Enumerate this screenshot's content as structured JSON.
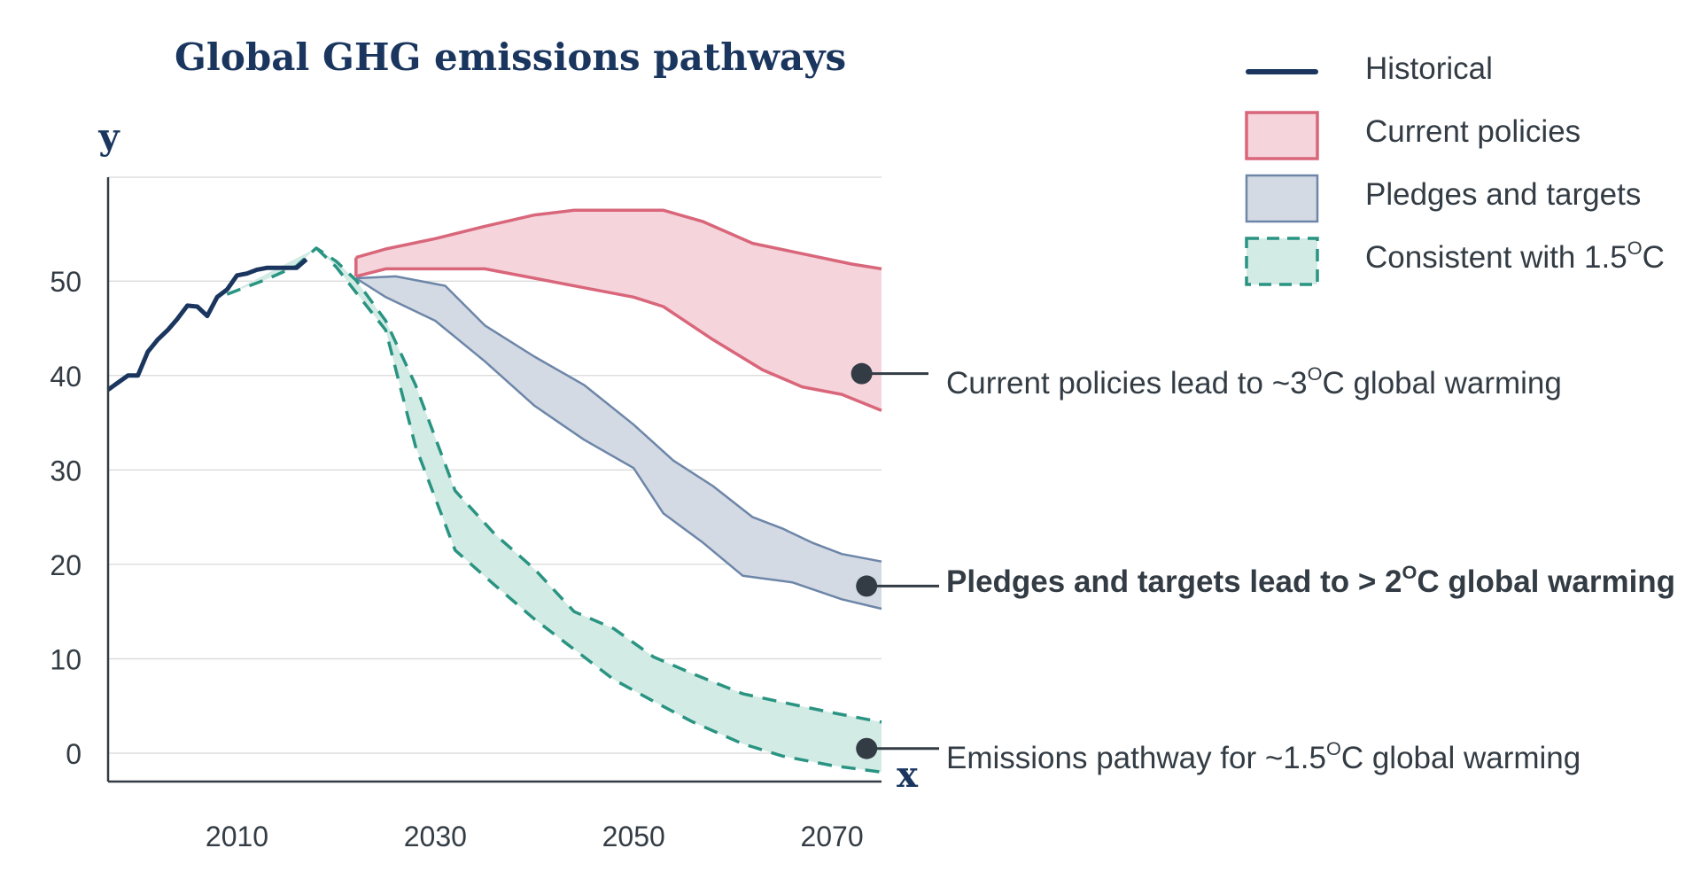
{
  "chart_data": {
    "type": "area",
    "title": "Global GHG emissions pathways",
    "xlabel": "x",
    "ylabel": "y",
    "xlim": [
      1997,
      2075
    ],
    "ylim": [
      -3,
      61
    ],
    "xticks": [
      2010,
      2030,
      2050,
      2070
    ],
    "yticks": [
      0,
      10,
      20,
      30,
      40,
      50
    ],
    "grid": true,
    "legend_position": "top-right",
    "legend": [
      "Historical",
      "Current policies",
      "Pledges and targets",
      "Consistent with 1.5"
    ],
    "colors": {
      "historical": "#1a365f",
      "current_policies_fill": "#f5d5db",
      "current_policies_stroke": "#d9667a",
      "pledges_fill": "#d3dae4",
      "pledges_stroke": "#6d86a8",
      "consistent_fill": "#d3ebe5",
      "consistent_stroke": "#2a9482",
      "grid": "#d8d8d8",
      "axis": "#333c44",
      "annotation_dot": "#333c44"
    },
    "series": [
      {
        "name": "Historical",
        "kind": "line",
        "points": [
          [
            1997,
            38.5
          ],
          [
            1999,
            40
          ],
          [
            2000,
            40
          ],
          [
            2001,
            42.5
          ],
          [
            2002,
            43.8
          ],
          [
            2003,
            44.8
          ],
          [
            2004,
            46
          ],
          [
            2005,
            47.4
          ],
          [
            2006,
            47.3
          ],
          [
            2007,
            46.3
          ],
          [
            2008,
            48.3
          ],
          [
            2009,
            49.1
          ],
          [
            2010,
            50.6
          ],
          [
            2011,
            50.8
          ],
          [
            2012,
            51.2
          ],
          [
            2013,
            51.4
          ],
          [
            2014,
            51.4
          ],
          [
            2015,
            51.4
          ],
          [
            2016,
            51.4
          ],
          [
            2017,
            52.3
          ]
        ]
      },
      {
        "name": "Current policies",
        "kind": "band",
        "upper": [
          [
            2022,
            52.5
          ],
          [
            2025,
            53.4
          ],
          [
            2030,
            54.5
          ],
          [
            2035,
            55.8
          ],
          [
            2040,
            57
          ],
          [
            2044,
            57.5
          ],
          [
            2048,
            57.5
          ],
          [
            2053,
            57.5
          ],
          [
            2057,
            56.3
          ],
          [
            2062,
            54
          ],
          [
            2067,
            52.9
          ],
          [
            2072,
            51.8
          ],
          [
            2075,
            51.3
          ]
        ],
        "lower": [
          [
            2022,
            50.5
          ],
          [
            2025,
            51.3
          ],
          [
            2030,
            51.3
          ],
          [
            2035,
            51.3
          ],
          [
            2040,
            50.3
          ],
          [
            2045,
            49.3
          ],
          [
            2050,
            48.3
          ],
          [
            2053,
            47.3
          ],
          [
            2058,
            43.8
          ],
          [
            2063,
            40.6
          ],
          [
            2067,
            38.8
          ],
          [
            2071,
            38
          ],
          [
            2075,
            36.3
          ]
        ]
      },
      {
        "name": "Pledges and targets",
        "kind": "band",
        "upper": [
          [
            2022,
            50.3
          ],
          [
            2026,
            50.5
          ],
          [
            2031,
            49.5
          ],
          [
            2035,
            45.3
          ],
          [
            2040,
            42
          ],
          [
            2045,
            39
          ],
          [
            2050,
            34.8
          ],
          [
            2054,
            31
          ],
          [
            2058,
            28.3
          ],
          [
            2062,
            25
          ],
          [
            2065,
            23.8
          ],
          [
            2068,
            22.3
          ],
          [
            2071,
            21.1
          ],
          [
            2075,
            20.3
          ]
        ],
        "lower": [
          [
            2022,
            50.3
          ],
          [
            2025,
            48.3
          ],
          [
            2027,
            47.3
          ],
          [
            2030,
            45.8
          ],
          [
            2035,
            41.5
          ],
          [
            2040,
            36.8
          ],
          [
            2045,
            33.2
          ],
          [
            2050,
            30.2
          ],
          [
            2053,
            25.4
          ],
          [
            2057,
            22.3
          ],
          [
            2061,
            18.8
          ],
          [
            2066,
            18.1
          ],
          [
            2071,
            16.3
          ],
          [
            2075,
            15.3
          ]
        ]
      },
      {
        "name": "Consistent with 1.5",
        "kind": "band",
        "upper": [
          [
            2009,
            48.6
          ],
          [
            2013,
            50.2
          ],
          [
            2016,
            51.6
          ],
          [
            2018,
            53.5
          ],
          [
            2020,
            52.1
          ],
          [
            2022,
            50.1
          ],
          [
            2025,
            45.8
          ],
          [
            2028,
            39
          ],
          [
            2032,
            27.8
          ],
          [
            2036,
            23.2
          ],
          [
            2040,
            19.5
          ],
          [
            2044,
            15
          ],
          [
            2048,
            13.2
          ],
          [
            2052,
            10.2
          ],
          [
            2056,
            8.4
          ],
          [
            2061,
            6.3
          ],
          [
            2065,
            5.4
          ],
          [
            2070,
            4.3
          ],
          [
            2075,
            3.3
          ]
        ],
        "lower": [
          [
            2018,
            53.5
          ],
          [
            2020,
            51.5
          ],
          [
            2022,
            48.8
          ],
          [
            2025,
            44.8
          ],
          [
            2028,
            32.5
          ],
          [
            2032,
            21.5
          ],
          [
            2036,
            17.8
          ],
          [
            2040,
            14.2
          ],
          [
            2044,
            11
          ],
          [
            2048,
            7.8
          ],
          [
            2052,
            5.5
          ],
          [
            2056,
            3.3
          ],
          [
            2061,
            1
          ],
          [
            2065,
            -0.3
          ],
          [
            2070,
            -1.3
          ],
          [
            2075,
            -2
          ]
        ]
      }
    ],
    "annotations": [
      {
        "text": "Current policies lead to ~3",
        "sup": "O",
        "tail": "C global warming",
        "x": 2073,
        "y": 40.2,
        "bold": false
      },
      {
        "text": "Pledges and targets lead to > 2",
        "sup": "O",
        "tail": "C global warming",
        "x": 2073.5,
        "y": 17.7,
        "bold": true
      },
      {
        "text": "Emissions pathway for ~1.5",
        "sup": "O",
        "tail": "C global warming",
        "x": 2073.5,
        "y": 0.5,
        "bold": false
      }
    ]
  },
  "legend_items": [
    {
      "label": "Historical",
      "sup": "",
      "tail": ""
    },
    {
      "label": "Current policies",
      "sup": "",
      "tail": ""
    },
    {
      "label": "Pledges and targets",
      "sup": "",
      "tail": ""
    },
    {
      "label": "Consistent with 1.5",
      "sup": "O",
      "tail": "C"
    }
  ]
}
